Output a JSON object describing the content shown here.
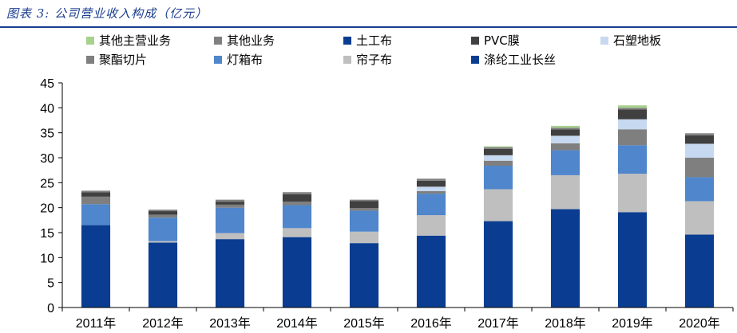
{
  "page": {
    "title": "图表 3:  公司营业收入构成（亿元）"
  },
  "chart_data": {
    "type": "bar",
    "stacked": true,
    "title": "",
    "xlabel": "",
    "ylabel": "",
    "ylim": [
      0,
      45
    ],
    "yticks": [
      0,
      5,
      10,
      15,
      20,
      25,
      30,
      35,
      40,
      45
    ],
    "grid": false,
    "legend_position": "top",
    "categories": [
      "2011年",
      "2012年",
      "2013年",
      "2014年",
      "2015年",
      "2016年",
      "2017年",
      "2018年",
      "2019年",
      "2020年"
    ],
    "series": [
      {
        "name": "涤纶工业长丝",
        "color": "#0a3d91",
        "values": [
          16.5,
          13.0,
          13.7,
          14.1,
          12.9,
          14.4,
          17.3,
          19.7,
          19.1,
          14.6
        ]
      },
      {
        "name": "帘子布",
        "color": "#bfbfbf",
        "values": [
          0.0,
          0.3,
          1.2,
          1.8,
          2.3,
          4.1,
          6.4,
          6.8,
          7.7,
          6.7
        ]
      },
      {
        "name": "灯箱布",
        "color": "#4f86cc",
        "values": [
          4.2,
          4.7,
          5.1,
          4.6,
          4.2,
          4.3,
          4.7,
          5.0,
          5.7,
          4.8
        ]
      },
      {
        "name": "聚酯切片",
        "color": "#7f7f7f",
        "values": [
          1.5,
          0.6,
          0.6,
          0.7,
          0.5,
          0.5,
          1.0,
          1.4,
          3.2,
          3.9
        ]
      },
      {
        "name": "石塑地板",
        "color": "#c6d9f0",
        "values": [
          0.0,
          0.0,
          0.0,
          0.0,
          0.0,
          0.9,
          1.1,
          1.5,
          2.0,
          2.8
        ]
      },
      {
        "name": "PVC膜",
        "color": "#404040",
        "values": [
          0.9,
          0.7,
          0.6,
          1.5,
          1.4,
          1.2,
          1.3,
          1.3,
          2.0,
          1.7
        ]
      },
      {
        "name": "土工布",
        "color": "#0a3d91",
        "values": [
          0.0,
          0.0,
          0.0,
          0.0,
          0.0,
          0.0,
          0.0,
          0.0,
          0.0,
          0.0
        ]
      },
      {
        "name": "其他业务",
        "color": "#808080",
        "values": [
          0.3,
          0.3,
          0.4,
          0.4,
          0.3,
          0.4,
          0.3,
          0.3,
          0.3,
          0.4
        ]
      },
      {
        "name": "其他主营业务",
        "color": "#a9d18e",
        "values": [
          0.0,
          0.0,
          0.0,
          0.0,
          0.0,
          0.0,
          0.2,
          0.4,
          0.5,
          0.0
        ]
      }
    ],
    "legend": [
      {
        "name": "其他主营业务",
        "color": "#a9d18e"
      },
      {
        "name": "其他业务",
        "color": "#808080"
      },
      {
        "name": "土工布",
        "color": "#0a3d91"
      },
      {
        "name": "PVC膜",
        "color": "#404040"
      },
      {
        "name": "石塑地板",
        "color": "#c6d9f0"
      },
      {
        "name": "聚酯切片",
        "color": "#7f7f7f"
      },
      {
        "name": "灯箱布",
        "color": "#4f86cc"
      },
      {
        "name": "帘子布",
        "color": "#bfbfbf"
      },
      {
        "name": "涤纶工业长丝",
        "color": "#0a3d91"
      }
    ]
  }
}
